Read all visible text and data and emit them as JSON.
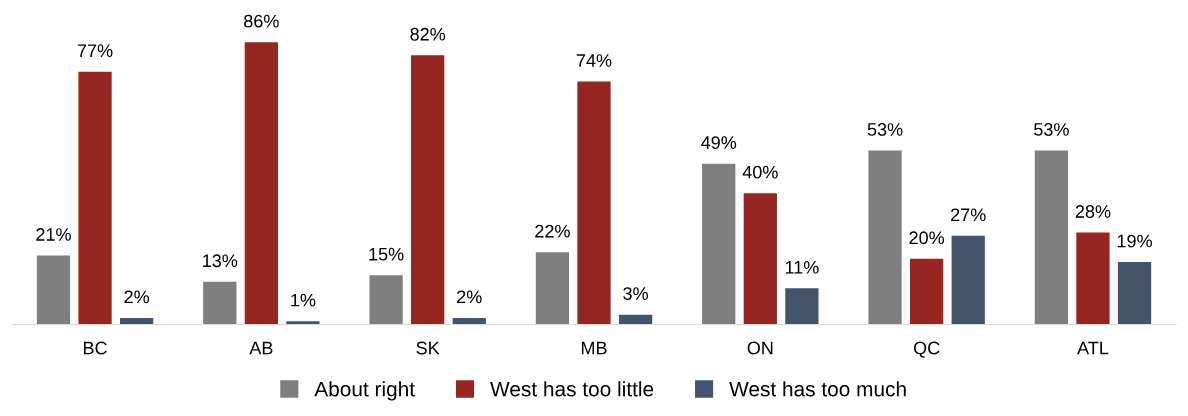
{
  "chart_data": {
    "type": "bar",
    "categories": [
      "BC",
      "AB",
      "SK",
      "MB",
      "ON",
      "QC",
      "ATL"
    ],
    "series": [
      {
        "name": "About right",
        "color": "#7f7f7f",
        "values": [
          21,
          13,
          15,
          22,
          49,
          53,
          53
        ],
        "value_labels": [
          "21%",
          "13%",
          "15%",
          "22%",
          "49%",
          "53%",
          "53%"
        ]
      },
      {
        "name": "West has too little",
        "color": "#962621",
        "values": [
          77,
          86,
          82,
          74,
          40,
          20,
          28
        ],
        "value_labels": [
          "77%",
          "86%",
          "82%",
          "74%",
          "40%",
          "20%",
          "28%"
        ]
      },
      {
        "name": "West has too much",
        "color": "#44546a",
        "values": [
          2,
          1,
          2,
          3,
          11,
          27,
          19
        ],
        "value_labels": [
          "2%",
          "1%",
          "2%",
          "3%",
          "11%",
          "27%",
          "19%"
        ]
      }
    ],
    "legend": "bottom",
    "grid": false,
    "tick_labels": "x"
  }
}
